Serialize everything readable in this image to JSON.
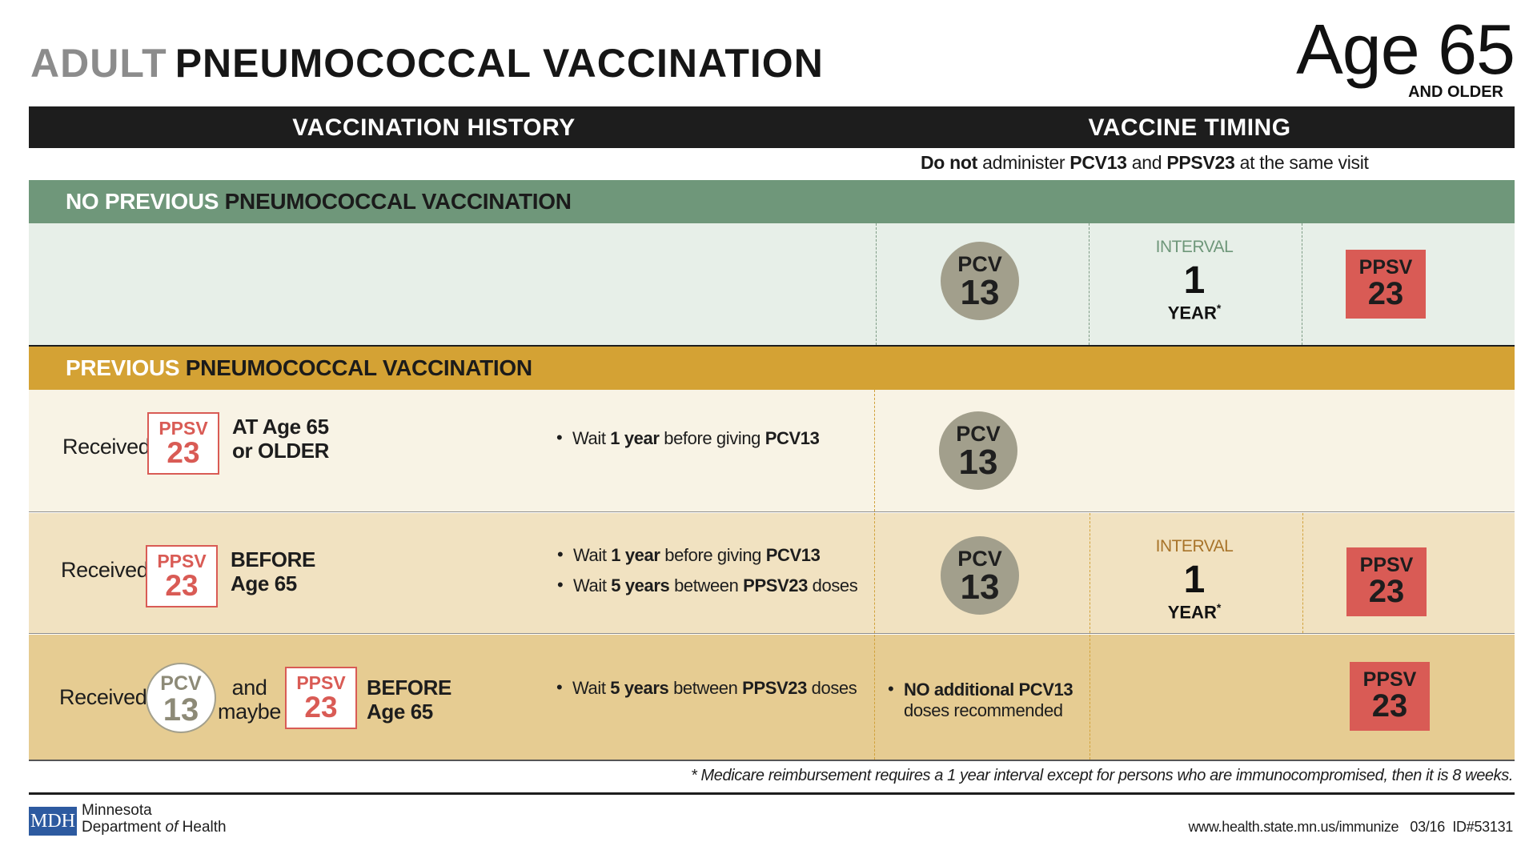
{
  "title": {
    "gray": "ADULT",
    "dark": "PNEUMOCOCCAL VACCINATION"
  },
  "age": {
    "big": "Age 65",
    "sub": "AND OLDER"
  },
  "header": {
    "history": "VACCINATION HISTORY",
    "timing": "VACCINE TIMING"
  },
  "note": {
    "do_not": "Do not",
    "administer": " administer ",
    "pcv13": "PCV13",
    "and": " and ",
    "ppsv23": "PPSV23",
    "rest": " at the same visit"
  },
  "sections": {
    "none": {
      "highlight": "NO PREVIOUS",
      "rest": " PNEUMOCOCCAL VACCINATION"
    },
    "previous": {
      "highlight": "PREVIOUS",
      "rest": " PNEUMOCOCCAL VACCINATION"
    }
  },
  "badges": {
    "pcv": "PCV",
    "pcv_num": "13",
    "ppsv": "PPSV",
    "ppsv_num": "23"
  },
  "interval": {
    "label": "INTERVAL",
    "num": "1",
    "year": "YEAR",
    "star": "*"
  },
  "rows": [
    {
      "received": "Received",
      "note_line1": "AT Age 65",
      "note_line2": "or OLDER",
      "bullets": [
        {
          "a": "Wait ",
          "b": "1 year",
          "c": " before giving ",
          "d": "PCV13"
        }
      ]
    },
    {
      "received": "Received",
      "note_line1": "BEFORE",
      "note_line2": "Age 65",
      "bullets": [
        {
          "a": "Wait ",
          "b": "1 year",
          "c": " before giving ",
          "d": "PCV13"
        },
        {
          "a": "Wait ",
          "b": "5 years",
          "c": " between ",
          "d": "PPSV23",
          "e": " doses"
        }
      ]
    },
    {
      "received": "Received",
      "and": "and",
      "maybe": "maybe",
      "note_line1": "BEFORE",
      "note_line2": "Age 65",
      "bullets": [
        {
          "a": "Wait ",
          "b": "5 years",
          "c": " between ",
          "d": "PPSV23",
          "e": " doses"
        }
      ],
      "timing_bullet": {
        "bold": "NO additional PCV13",
        "normal": "doses recommended"
      }
    }
  ],
  "footnote": "* Medicare reimbursement requires a 1 year interval except for persons who are immunocompromised, then it is 8 weeks.",
  "footer": {
    "logo": "MDH",
    "org_line1": "Minnesota",
    "org_line2_a": "Department ",
    "org_line2_b": "of",
    "org_line2_c": " Health",
    "url": "www.health.state.mn.us/immunize",
    "date": "03/16",
    "id": "ID#53131"
  },
  "colors": {
    "green": "#6f977a",
    "gold": "#d4a234",
    "red": "#d95b55",
    "pcv_gray": "#a29f8c",
    "interval_green": "#6f977a",
    "interval_gold": "#a8742a"
  }
}
